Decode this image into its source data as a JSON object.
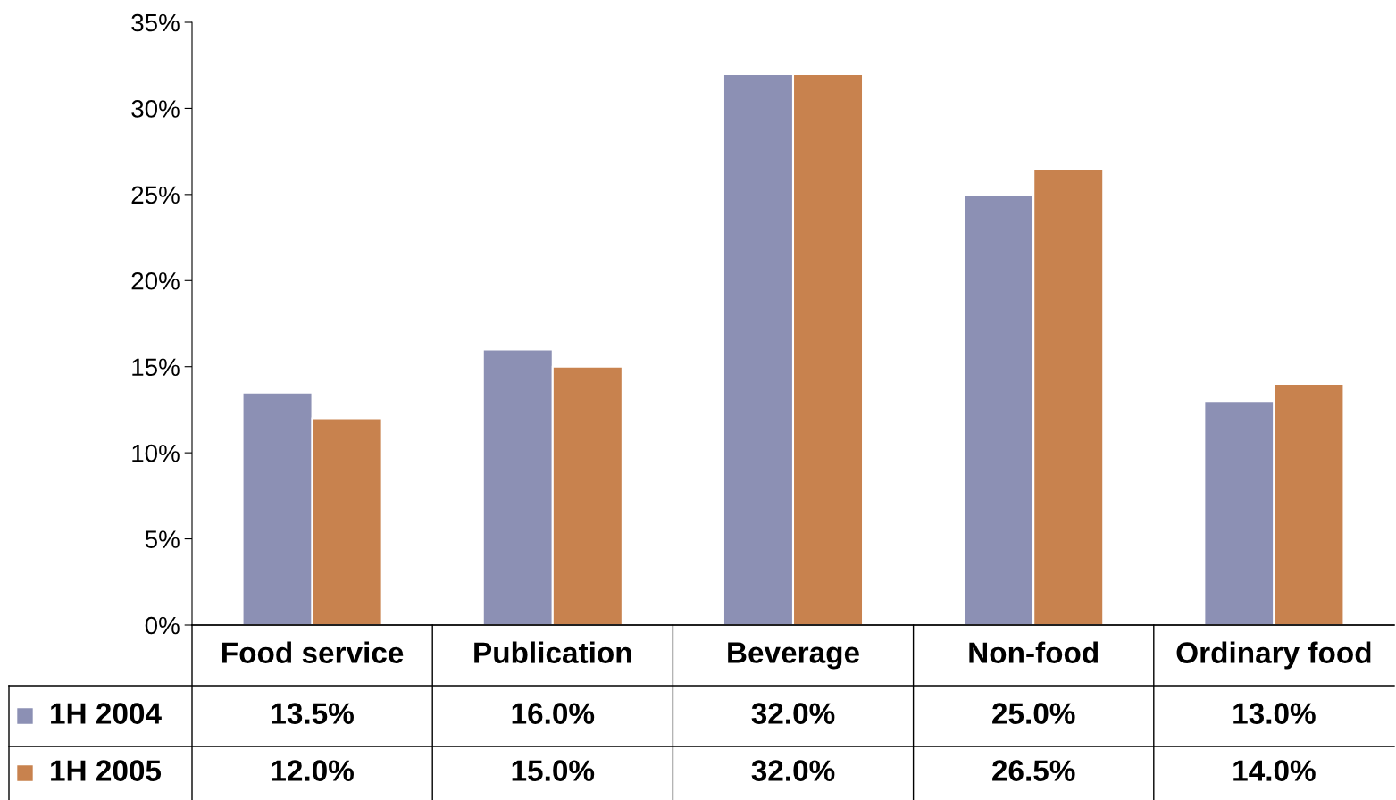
{
  "chart_data": {
    "type": "bar",
    "categories": [
      "Food service",
      "Publication",
      "Beverage",
      "Non-food",
      "Ordinary food"
    ],
    "series": [
      {
        "name": "1H 2004",
        "color": "#8c90b4",
        "values": [
          13.5,
          16.0,
          32.0,
          25.0,
          13.0
        ],
        "value_labels": [
          "13.5%",
          "16.0%",
          "32.0%",
          "25.0%",
          "13.0%"
        ]
      },
      {
        "name": "1H 2005",
        "color": "#c8824e",
        "values": [
          12.0,
          15.0,
          32.0,
          26.5,
          14.0
        ],
        "value_labels": [
          "12.0%",
          "15.0%",
          "32.0%",
          "26.5%",
          "14.0%"
        ]
      }
    ],
    "ylim": [
      0,
      35
    ],
    "yticks": [
      {
        "value": 0,
        "label": "0%"
      },
      {
        "value": 5,
        "label": "5%"
      },
      {
        "value": 10,
        "label": "10%"
      },
      {
        "value": 15,
        "label": "15%"
      },
      {
        "value": 20,
        "label": "20%"
      },
      {
        "value": 25,
        "label": "25%"
      },
      {
        "value": 30,
        "label": "30%"
      },
      {
        "value": 35,
        "label": "35%"
      }
    ],
    "grid": false,
    "legend": "bottom left"
  }
}
